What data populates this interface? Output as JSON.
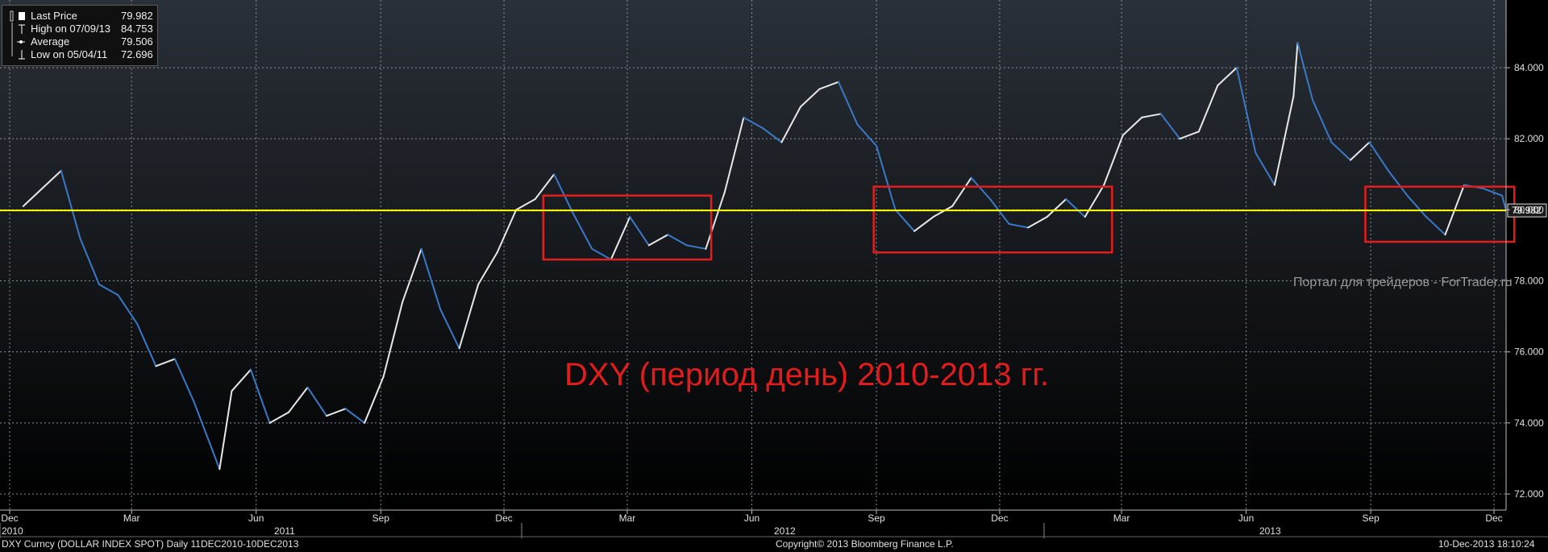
{
  "legend": [
    {
      "icon": "solid-square-icon",
      "label": "Last Price",
      "value": "79.982"
    },
    {
      "icon": "high-marker-icon",
      "label": "High on 07/09/13",
      "value": "84.753"
    },
    {
      "icon": "average-marker-icon",
      "label": "Average",
      "value": "79.506"
    },
    {
      "icon": "low-marker-icon",
      "label": "Low on 05/04/11",
      "value": "72.696"
    }
  ],
  "last_price_label": "79.982",
  "watermark": "Портал для трейдеров - ForTrader.ru",
  "title": "DXY (период день) 2010-2013 гг.",
  "footer": {
    "left": "DXY Curncy (DOLLAR INDEX SPOT)  Daily 11DEC2010-10DEC2013",
    "center": "Copyright© 2013 Bloomberg Finance L.P.",
    "right": "10-Dec-2013 18:10:24"
  },
  "colors": {
    "background_top": "#2a3038",
    "background_bottom": "#000000",
    "grid": "#8a8f96",
    "price_up": "#e8e8e8",
    "price_down": "#3a78c8",
    "last_price_line": "#ffff00",
    "boxes": "#e21d1d",
    "title": "#e11c1c"
  },
  "chart_data": {
    "type": "line",
    "title": "DXY (период день) 2010-2013 гг.",
    "series": [
      {
        "name": "DXY Curncy (DOLLAR INDEX SPOT)"
      }
    ],
    "x_range": [
      "2010-12-11",
      "2013-12-10"
    ],
    "ylim": [
      71.5,
      85.5
    ],
    "y_ticks": [
      "72.000",
      "74.000",
      "76.000",
      "78.000",
      "80.000",
      "82.000",
      "84.000"
    ],
    "x_month_ticks": [
      "Dec",
      "Mar",
      "Jun",
      "Sep",
      "Dec",
      "Mar",
      "Jun",
      "Sep",
      "Dec",
      "Mar",
      "Jun",
      "Sep",
      "Dec"
    ],
    "x_year_labels": [
      "2010",
      "2011",
      "2012",
      "2013"
    ],
    "grid": true,
    "last_price": 79.982,
    "high": {
      "date": "07/09/13",
      "value": 84.753
    },
    "low": {
      "date": "05/04/11",
      "value": 72.696
    },
    "average": 79.506,
    "x": [
      "2010-12-11",
      "2010-12-25",
      "2011-01-08",
      "2011-01-22",
      "2011-02-05",
      "2011-02-19",
      "2011-03-05",
      "2011-03-19",
      "2011-04-02",
      "2011-04-16",
      "2011-04-30",
      "2011-05-05",
      "2011-05-14",
      "2011-05-28",
      "2011-06-11",
      "2011-06-25",
      "2011-07-09",
      "2011-07-23",
      "2011-08-06",
      "2011-08-20",
      "2011-09-03",
      "2011-09-17",
      "2011-10-01",
      "2011-10-15",
      "2011-10-29",
      "2011-11-12",
      "2011-11-26",
      "2011-12-10",
      "2011-12-24",
      "2012-01-07",
      "2012-01-21",
      "2012-02-04",
      "2012-02-18",
      "2012-03-03",
      "2012-03-17",
      "2012-03-31",
      "2012-04-14",
      "2012-04-28",
      "2012-05-12",
      "2012-05-26",
      "2012-06-09",
      "2012-06-23",
      "2012-07-07",
      "2012-07-21",
      "2012-08-04",
      "2012-08-18",
      "2012-09-01",
      "2012-09-15",
      "2012-09-29",
      "2012-10-13",
      "2012-10-27",
      "2012-11-10",
      "2012-11-24",
      "2012-12-08",
      "2012-12-22",
      "2013-01-05",
      "2013-01-19",
      "2013-02-02",
      "2013-02-16",
      "2013-03-02",
      "2013-03-16",
      "2013-03-30",
      "2013-04-13",
      "2013-04-27",
      "2013-05-11",
      "2013-05-25",
      "2013-06-08",
      "2013-06-22",
      "2013-07-06",
      "2013-07-09",
      "2013-07-20",
      "2013-08-03",
      "2013-08-17",
      "2013-08-31",
      "2013-09-14",
      "2013-09-28",
      "2013-10-12",
      "2013-10-26",
      "2013-11-09",
      "2013-11-23",
      "2013-12-07",
      "2013-12-10"
    ],
    "values": [
      80.1,
      80.6,
      81.1,
      79.2,
      77.9,
      77.6,
      76.8,
      75.6,
      75.8,
      74.6,
      73.2,
      72.7,
      74.9,
      75.5,
      74.0,
      74.3,
      75.0,
      74.2,
      74.4,
      74.0,
      75.3,
      77.4,
      78.9,
      77.2,
      76.1,
      77.9,
      78.8,
      80.0,
      80.3,
      81.0,
      79.9,
      78.9,
      78.6,
      79.8,
      79.0,
      79.3,
      79.0,
      78.9,
      80.5,
      82.6,
      82.3,
      81.9,
      82.9,
      83.4,
      83.6,
      82.4,
      81.8,
      80.0,
      79.4,
      79.8,
      80.1,
      80.9,
      80.3,
      79.6,
      79.5,
      79.8,
      80.3,
      79.8,
      80.7,
      82.1,
      82.6,
      82.7,
      82.0,
      82.2,
      83.5,
      84.0,
      81.6,
      80.7,
      83.2,
      84.7,
      83.1,
      81.9,
      81.4,
      81.9,
      81.1,
      80.4,
      79.8,
      79.3,
      80.7,
      80.6,
      80.4,
      79.982
    ]
  }
}
